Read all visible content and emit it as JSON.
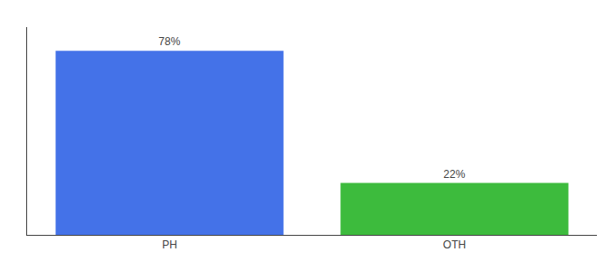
{
  "chart_data": {
    "type": "bar",
    "categories": [
      "PH",
      "OTH"
    ],
    "values": [
      78,
      22
    ],
    "value_labels": [
      "78%",
      "22%"
    ],
    "colors": [
      "#4472e8",
      "#3dbb3d"
    ],
    "data_labels": true,
    "ylim": [
      0,
      88
    ],
    "tick_labels": "x",
    "grid": false
  }
}
